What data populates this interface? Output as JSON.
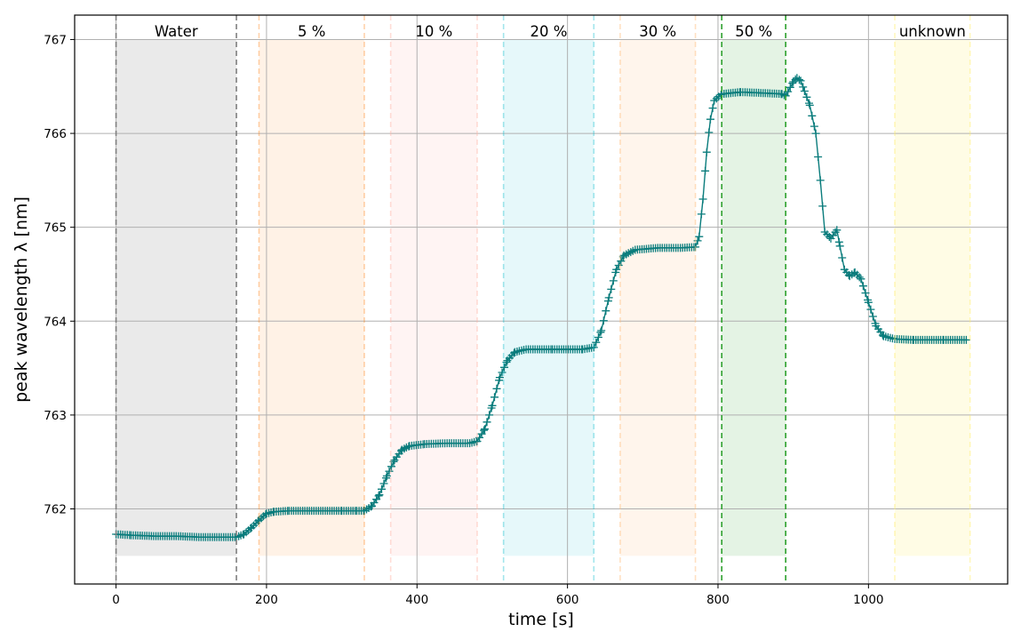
{
  "chart_data": {
    "type": "line",
    "xlabel": "time [s]",
    "ylabel": "peak wavelength λ [nm]",
    "xlim": [
      -55,
      1185
    ],
    "ylim": [
      761.2,
      767.26
    ],
    "xticks": [
      0,
      200,
      400,
      600,
      800,
      1000
    ],
    "yticks": [
      762,
      763,
      764,
      765,
      766,
      767
    ],
    "grid": true,
    "colors": {
      "line": "#0a7c7c"
    },
    "bands": [
      {
        "label": "Water",
        "x_start": 0,
        "x_end": 160,
        "color": "#7f7f7f",
        "fill_opacity": 0.16,
        "line_opacity": 1.0
      },
      {
        "label": "5 %",
        "x_start": 190,
        "x_end": 330,
        "color": "#ff7f0e",
        "fill_opacity": 0.1,
        "line_opacity": 0.35
      },
      {
        "label": "10 %",
        "x_start": 365,
        "x_end": 480,
        "color": "#ffb3a7",
        "fill_opacity": 0.14,
        "line_opacity": 0.45
      },
      {
        "label": "20 %",
        "x_start": 515,
        "x_end": 635,
        "color": "#17becf",
        "fill_opacity": 0.11,
        "line_opacity": 0.4
      },
      {
        "label": "30 %",
        "x_start": 670,
        "x_end": 770,
        "color": "#ffbb78",
        "fill_opacity": 0.14,
        "line_opacity": 0.45
      },
      {
        "label": "50 %",
        "x_start": 805,
        "x_end": 890,
        "color": "#2ca02c",
        "fill_opacity": 0.13,
        "line_opacity": 1.0
      },
      {
        "label": "unknown",
        "x_start": 1035,
        "x_end": 1135,
        "color": "#ffed6f",
        "fill_opacity": 0.18,
        "line_opacity": 0.45
      }
    ],
    "band_fill_bottom": 761.5,
    "band_fill_top": 767.0,
    "series": [
      {
        "points": [
          [
            0,
            761.73
          ],
          [
            20,
            761.72
          ],
          [
            50,
            761.71
          ],
          [
            80,
            761.71
          ],
          [
            110,
            761.7
          ],
          [
            140,
            761.7
          ],
          [
            160,
            761.7
          ],
          [
            170,
            761.73
          ],
          [
            180,
            761.8
          ],
          [
            190,
            761.88
          ],
          [
            200,
            761.95
          ],
          [
            210,
            761.97
          ],
          [
            230,
            761.98
          ],
          [
            260,
            761.98
          ],
          [
            300,
            761.98
          ],
          [
            320,
            761.98
          ],
          [
            330,
            761.98
          ],
          [
            340,
            762.03
          ],
          [
            350,
            762.15
          ],
          [
            360,
            762.35
          ],
          [
            370,
            762.52
          ],
          [
            380,
            762.63
          ],
          [
            390,
            762.67
          ],
          [
            410,
            762.69
          ],
          [
            440,
            762.7
          ],
          [
            470,
            762.7
          ],
          [
            480,
            762.72
          ],
          [
            490,
            762.85
          ],
          [
            500,
            763.1
          ],
          [
            510,
            763.4
          ],
          [
            520,
            763.58
          ],
          [
            530,
            763.67
          ],
          [
            545,
            763.7
          ],
          [
            580,
            763.7
          ],
          [
            620,
            763.7
          ],
          [
            635,
            763.72
          ],
          [
            645,
            763.9
          ],
          [
            655,
            764.25
          ],
          [
            665,
            764.55
          ],
          [
            675,
            764.7
          ],
          [
            690,
            764.76
          ],
          [
            720,
            764.78
          ],
          [
            750,
            764.78
          ],
          [
            770,
            764.79
          ],
          [
            775,
            764.9
          ],
          [
            780,
            765.3
          ],
          [
            785,
            765.8
          ],
          [
            790,
            766.15
          ],
          [
            795,
            766.35
          ],
          [
            805,
            766.42
          ],
          [
            830,
            766.44
          ],
          [
            860,
            766.43
          ],
          [
            885,
            766.42
          ],
          [
            890,
            766.4
          ],
          [
            900,
            766.55
          ],
          [
            905,
            766.59
          ],
          [
            910,
            766.56
          ],
          [
            915,
            766.45
          ],
          [
            922,
            766.3
          ],
          [
            930,
            766.0
          ],
          [
            936,
            765.5
          ],
          [
            942,
            764.95
          ],
          [
            950,
            764.88
          ],
          [
            958,
            764.97
          ],
          [
            962,
            764.8
          ],
          [
            968,
            764.55
          ],
          [
            975,
            764.48
          ],
          [
            982,
            764.52
          ],
          [
            990,
            764.45
          ],
          [
            1000,
            764.2
          ],
          [
            1010,
            763.95
          ],
          [
            1020,
            763.84
          ],
          [
            1035,
            763.81
          ],
          [
            1060,
            763.8
          ],
          [
            1100,
            763.8
          ],
          [
            1130,
            763.8
          ]
        ]
      }
    ]
  }
}
